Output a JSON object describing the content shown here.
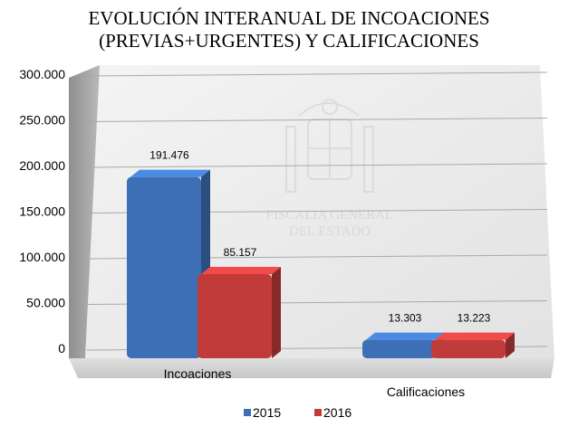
{
  "chart_data": {
    "type": "bar",
    "title": [
      "EVOLUCIÓN INTERANUAL DE INCOACIONES",
      "(PREVIAS+URGENTES) Y CALIFICACIONES"
    ],
    "categories": [
      "Incoaciones",
      "Calificaciones"
    ],
    "series": [
      {
        "name": "2015",
        "values": [
          191476,
          13303
        ],
        "color": "#3d6fb6"
      },
      {
        "name": "2016",
        "values": [
          85157,
          13223
        ],
        "color": "#c23b3b"
      }
    ],
    "data_labels": [
      [
        "191.476",
        "13.303"
      ],
      [
        "85.157",
        "13.223"
      ]
    ],
    "ylim": [
      0,
      300000
    ],
    "yticks": [
      0,
      50000,
      100000,
      150000,
      200000,
      250000,
      300000
    ],
    "ytick_labels": [
      "0",
      "50.000",
      "100.000",
      "150.000",
      "200.000",
      "250.000",
      "300.000"
    ],
    "grid": true,
    "legend_position": "bottom",
    "watermark": [
      "FISCALIA GENERAL",
      "DEL ESTADO"
    ]
  }
}
